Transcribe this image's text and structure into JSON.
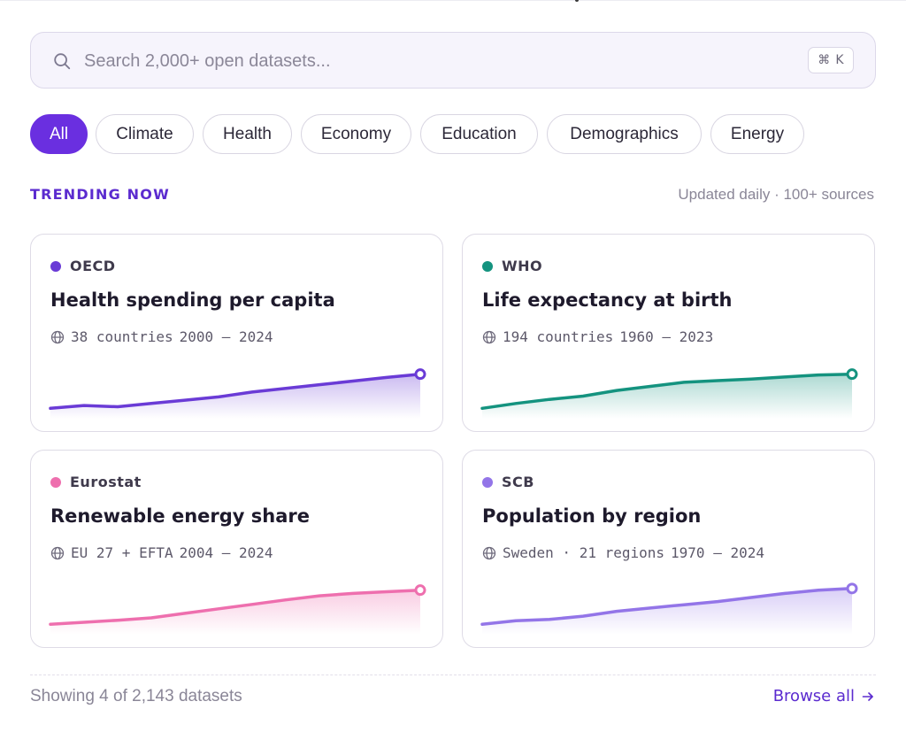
{
  "search": {
    "placeholder": "Search 2,000+ open datasets...",
    "value": "",
    "shortcut_symbol": "⌘",
    "shortcut_key": "K"
  },
  "filters": [
    {
      "label": "All",
      "active": true
    },
    {
      "label": "Climate",
      "active": false
    },
    {
      "label": "Health",
      "active": false
    },
    {
      "label": "Economy",
      "active": false
    },
    {
      "label": "Education",
      "active": false
    },
    {
      "label": "Demographics",
      "active": false
    },
    {
      "label": "Energy",
      "active": false
    }
  ],
  "section": {
    "title": "TRENDING NOW",
    "meta": "Updated daily · 100+ sources"
  },
  "cards": [
    {
      "source": "OECD",
      "title": "Health spending per capita",
      "coverage": "38 countries",
      "range": "2000 – 2024",
      "color": "#6a3bd6",
      "trend": [
        0.08,
        0.15,
        0.12,
        0.2,
        0.28,
        0.36,
        0.48,
        0.57,
        0.66,
        0.75,
        0.84,
        0.92
      ]
    },
    {
      "source": "WHO",
      "title": "Life expectancy at birth",
      "coverage": "194 countries",
      "range": "1960 – 2023",
      "color": "#14937f",
      "trend": [
        0.08,
        0.2,
        0.3,
        0.38,
        0.52,
        0.62,
        0.72,
        0.76,
        0.8,
        0.85,
        0.9,
        0.92
      ]
    },
    {
      "source": "Eurostat",
      "title": "Renewable energy share",
      "coverage": "EU 27 + EFTA",
      "range": "2004 – 2024",
      "color": "#ee6fae",
      "trend": [
        0.08,
        0.13,
        0.18,
        0.24,
        0.35,
        0.46,
        0.57,
        0.68,
        0.78,
        0.84,
        0.88,
        0.92
      ]
    },
    {
      "source": "SCB",
      "title": "Population by region",
      "coverage": "Sweden · 21 regions",
      "range": "1970 – 2024",
      "color": "#9375e8",
      "trend": [
        0.08,
        0.17,
        0.2,
        0.28,
        0.4,
        0.48,
        0.56,
        0.64,
        0.74,
        0.84,
        0.92,
        0.96
      ]
    }
  ],
  "footer": {
    "count": "Showing 4 of 2,143 datasets",
    "browse": "Browse all"
  }
}
